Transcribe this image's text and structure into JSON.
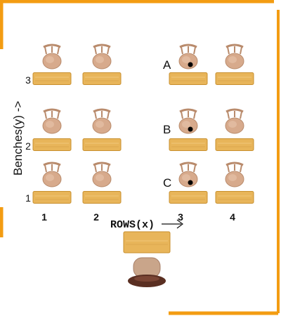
{
  "axes": {
    "x_label": "ROWS(x)",
    "y_label": "Benches(y) ->",
    "x_ticks": [
      "1",
      "2",
      "3",
      "4"
    ],
    "y_ticks": [
      "1",
      "2",
      "3"
    ]
  },
  "points": [
    {
      "label": "A",
      "row": 3,
      "bench": 3
    },
    {
      "label": "B",
      "row": 3,
      "bench": 2
    },
    {
      "label": "C",
      "row": 3,
      "bench": 1
    }
  ],
  "colors": {
    "wall": "#f39c12",
    "desk": "#e8b55a",
    "desk_edge": "#c8902f",
    "chair": "#d7aa8c",
    "chair_shade": "#b98b6c",
    "teacher_chair": "#c9a58a",
    "teacher_seat": "#5a2f22",
    "dot": "#000000"
  },
  "icons": {
    "chair": "chair-icon",
    "desk": "desk-icon",
    "teacher_desk": "teacher-desk-icon",
    "teacher_chair": "teacher-chair-icon",
    "arrow": "arrow-right-icon"
  }
}
